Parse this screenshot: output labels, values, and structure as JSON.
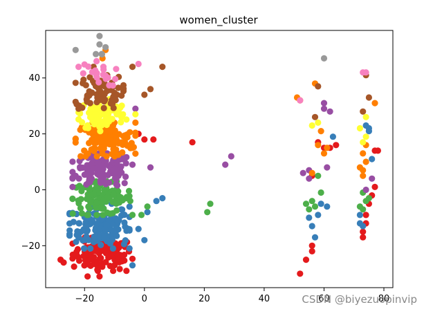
{
  "watermark": "CSDN @biyezuopinvip",
  "palette": {
    "red": "#e41a1c",
    "blue": "#377eb8",
    "green": "#4daf4a",
    "purple": "#984ea3",
    "orange": "#ff7f00",
    "yellow": "#ffff33",
    "brown": "#a65628",
    "pink": "#f781bf",
    "grey": "#999999"
  },
  "chart_data": {
    "type": "scatter",
    "title": "women_cluster",
    "xlabel": "",
    "ylabel": "",
    "xlim": [
      -33,
      83
    ],
    "ylim": [
      -35,
      57
    ],
    "xticks": [
      -20,
      0,
      20,
      40,
      60,
      80
    ],
    "yticks": [
      -20,
      0,
      20,
      40
    ],
    "grid": false,
    "legend": "none",
    "clusters": [
      {
        "color": "red",
        "center": [
          -14,
          -23
        ],
        "spread": [
          5,
          3
        ],
        "count": 110,
        "extra": [
          [
            -28,
            -25
          ],
          [
            -27,
            -26
          ],
          [
            -19,
            -31
          ],
          [
            -15,
            -31
          ],
          [
            -6,
            -29
          ],
          [
            16,
            17
          ],
          [
            52,
            -30
          ],
          [
            54,
            -25
          ],
          [
            56,
            -22
          ],
          [
            56,
            -20
          ],
          [
            58,
            17
          ],
          [
            60,
            15
          ],
          [
            62,
            15
          ],
          [
            64,
            16
          ],
          [
            73,
            -15
          ],
          [
            73,
            -17
          ],
          [
            74,
            -12
          ],
          [
            74,
            -9
          ],
          [
            75,
            -5
          ],
          [
            76,
            -2
          ],
          [
            77,
            1
          ],
          [
            78,
            14
          ],
          [
            77,
            14
          ],
          [
            56,
            5
          ],
          [
            -2,
            20
          ],
          [
            0,
            18
          ],
          [
            3,
            18
          ]
        ]
      },
      {
        "color": "blue",
        "center": [
          -15,
          -13
        ],
        "spread": [
          5,
          4
        ],
        "count": 150,
        "extra": [
          [
            -4,
            -27
          ],
          [
            0,
            -18
          ],
          [
            -2,
            -14
          ],
          [
            1,
            -8
          ],
          [
            4,
            -4
          ],
          [
            6,
            -3
          ],
          [
            55,
            -10
          ],
          [
            56,
            -13
          ],
          [
            57,
            -17
          ],
          [
            58,
            -9
          ],
          [
            59,
            -5
          ],
          [
            61,
            -6
          ],
          [
            63,
            19
          ],
          [
            72,
            -9
          ],
          [
            72,
            -12
          ],
          [
            73,
            -13
          ],
          [
            75,
            21
          ],
          [
            75,
            22
          ],
          [
            76,
            11
          ],
          [
            74,
            23
          ]
        ]
      },
      {
        "color": "green",
        "center": [
          -14,
          -3
        ],
        "spread": [
          5,
          3
        ],
        "count": 110,
        "extra": [
          [
            21,
            -8
          ],
          [
            22,
            -5
          ],
          [
            -1,
            -9
          ],
          [
            1,
            -6
          ],
          [
            54,
            -5
          ],
          [
            55,
            -7
          ],
          [
            56,
            -4
          ],
          [
            57,
            -6
          ],
          [
            58,
            5
          ],
          [
            59,
            -1
          ],
          [
            72,
            -6
          ],
          [
            73,
            -7
          ],
          [
            74,
            -4
          ],
          [
            75,
            -3
          ],
          [
            73,
            -1
          ]
        ]
      },
      {
        "color": "purple",
        "center": [
          -14,
          7
        ],
        "spread": [
          5,
          3
        ],
        "count": 120,
        "extra": [
          [
            27,
            9
          ],
          [
            29,
            12
          ],
          [
            2,
            8
          ],
          [
            -23,
            5
          ],
          [
            -3,
            29
          ],
          [
            60,
            29
          ],
          [
            60,
            31
          ],
          [
            62,
            28
          ],
          [
            61,
            8
          ],
          [
            76,
            4
          ],
          [
            74,
            0
          ],
          [
            53,
            6
          ],
          [
            55,
            7
          ],
          [
            55,
            4
          ]
        ]
      },
      {
        "color": "orange",
        "center": [
          -13,
          18
        ],
        "spread": [
          5,
          3
        ],
        "count": 130,
        "extra": [
          [
            -14,
            47
          ],
          [
            -13,
            50
          ],
          [
            -6,
            19
          ],
          [
            -4,
            15
          ],
          [
            58,
            16
          ],
          [
            59,
            21
          ],
          [
            60,
            13
          ],
          [
            61,
            15
          ],
          [
            51,
            33
          ],
          [
            52,
            32
          ],
          [
            57,
            38
          ],
          [
            56,
            6
          ],
          [
            74,
            10
          ],
          [
            73,
            13
          ],
          [
            73,
            7
          ],
          [
            73,
            5
          ],
          [
            72,
            8
          ],
          [
            77,
            31
          ],
          [
            74,
            16
          ]
        ]
      },
      {
        "color": "yellow",
        "center": [
          -14,
          27
        ],
        "spread": [
          4,
          3
        ],
        "count": 80,
        "extra": [
          [
            -3,
            27
          ],
          [
            56,
            23
          ],
          [
            58,
            24
          ],
          [
            73,
            17
          ],
          [
            74,
            19
          ],
          [
            72,
            22
          ],
          [
            74,
            26
          ]
        ]
      },
      {
        "color": "brown",
        "center": [
          -15,
          35
        ],
        "spread": [
          4,
          3
        ],
        "count": 75,
        "extra": [
          [
            6,
            44
          ],
          [
            -17,
            44
          ],
          [
            -4,
            44
          ],
          [
            2,
            36
          ],
          [
            0,
            34
          ],
          [
            58,
            37
          ],
          [
            57,
            26
          ],
          [
            74,
            41
          ],
          [
            73,
            28
          ],
          [
            75,
            33
          ],
          [
            -22,
            29
          ]
        ]
      },
      {
        "color": "pink",
        "center": [
          -15,
          41
        ],
        "spread": [
          3,
          2
        ],
        "count": 20,
        "extra": [
          [
            -22,
            44
          ],
          [
            -16,
            46
          ],
          [
            -2,
            45
          ],
          [
            52,
            32
          ],
          [
            73,
            42
          ],
          [
            74,
            42
          ]
        ]
      },
      {
        "color": "grey",
        "center": [
          -15,
          50
        ],
        "spread": [
          1,
          1
        ],
        "count": 4,
        "extra": [
          [
            -23,
            50
          ],
          [
            -15,
            55
          ],
          [
            -15,
            52
          ],
          [
            60,
            47
          ]
        ]
      }
    ]
  }
}
